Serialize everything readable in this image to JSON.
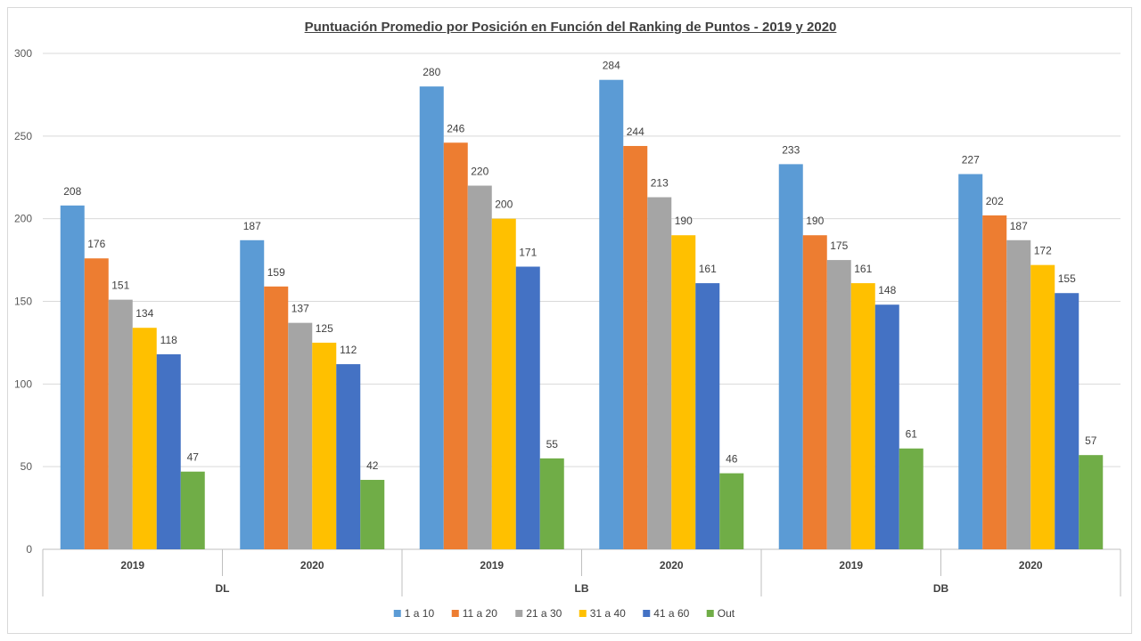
{
  "chart_data": {
    "type": "bar",
    "title": "Puntuación Promedio por Posición en Función del Ranking de Puntos - 2019 y 2020",
    "xlabel": "",
    "ylabel": "",
    "ylim": [
      0,
      300
    ],
    "yticks": [
      0,
      50,
      100,
      150,
      200,
      250,
      300
    ],
    "grid": true,
    "legend_position": "bottom",
    "groups": [
      "DL",
      "LB",
      "DB"
    ],
    "categories": [
      "2019",
      "2020",
      "2019",
      "2020",
      "2019",
      "2020"
    ],
    "category_groups": [
      "DL",
      "DL",
      "LB",
      "LB",
      "DB",
      "DB"
    ],
    "series": [
      {
        "name": "1 a 10",
        "color": "#5b9bd5",
        "values": [
          208,
          187,
          280,
          284,
          233,
          227
        ]
      },
      {
        "name": "11 a 20",
        "color": "#ed7d31",
        "values": [
          176,
          159,
          246,
          244,
          190,
          202
        ]
      },
      {
        "name": "21 a 30",
        "color": "#a5a5a5",
        "values": [
          151,
          137,
          220,
          213,
          175,
          187
        ]
      },
      {
        "name": "31 a 40",
        "color": "#ffc000",
        "values": [
          134,
          125,
          200,
          190,
          161,
          172
        ]
      },
      {
        "name": "41 a 60",
        "color": "#4472c4",
        "values": [
          118,
          112,
          171,
          161,
          148,
          155
        ]
      },
      {
        "name": "Out",
        "color": "#70ad47",
        "values": [
          47,
          42,
          55,
          46,
          61,
          57
        ]
      }
    ]
  }
}
